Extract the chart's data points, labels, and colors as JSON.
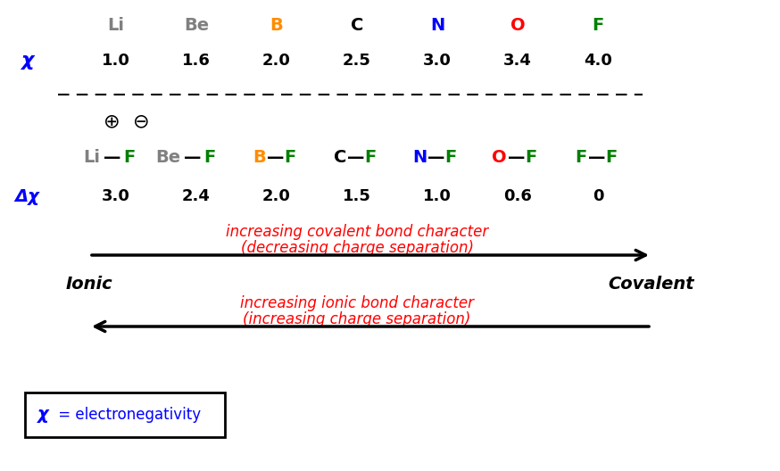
{
  "elements": [
    "Li",
    "Be",
    "B",
    "C",
    "N",
    "O",
    "F"
  ],
  "element_colors": [
    "#808080",
    "#808080",
    "#ff8c00",
    "#000000",
    "#0000ff",
    "#ff0000",
    "#008000"
  ],
  "chi_values": [
    "1.0",
    "1.6",
    "2.0",
    "2.5",
    "3.0",
    "3.4",
    "4.0"
  ],
  "bond_pairs": [
    {
      "left": "Li",
      "left_color": "#808080",
      "right": "F",
      "right_color": "#008000"
    },
    {
      "left": "Be",
      "left_color": "#808080",
      "right": "F",
      "right_color": "#008000"
    },
    {
      "left": "B",
      "left_color": "#ff8c00",
      "right": "F",
      "right_color": "#008000"
    },
    {
      "left": "C",
      "left_color": "#000000",
      "right": "F",
      "right_color": "#008000"
    },
    {
      "left": "N",
      "left_color": "#0000ff",
      "right": "F",
      "right_color": "#008000"
    },
    {
      "left": "O",
      "left_color": "#ff0000",
      "right": "F",
      "right_color": "#008000"
    },
    {
      "left": "F",
      "left_color": "#008000",
      "right": "F",
      "right_color": "#008000"
    }
  ],
  "delta_chi": [
    "3.0",
    "2.4",
    "2.0",
    "1.5",
    "1.0",
    "0.6",
    "0"
  ],
  "chi_label": "χ",
  "delta_chi_label": "Δχ",
  "arrow_color": "#000000",
  "red_color": "#ff0000",
  "blue_color": "#0000ff",
  "ionic_label": "Ionic",
  "covalent_label": "Covalent",
  "cov_arrow_text1": "increasing covalent bond character",
  "cov_arrow_text2": "(decreasing charge separation)",
  "ion_arrow_text1": "increasing ionic bond character",
  "ion_arrow_text2": "(increasing charge separation)",
  "legend_chi": "χ",
  "legend_text": " = electronegativity",
  "bg_color": "#ffffff"
}
